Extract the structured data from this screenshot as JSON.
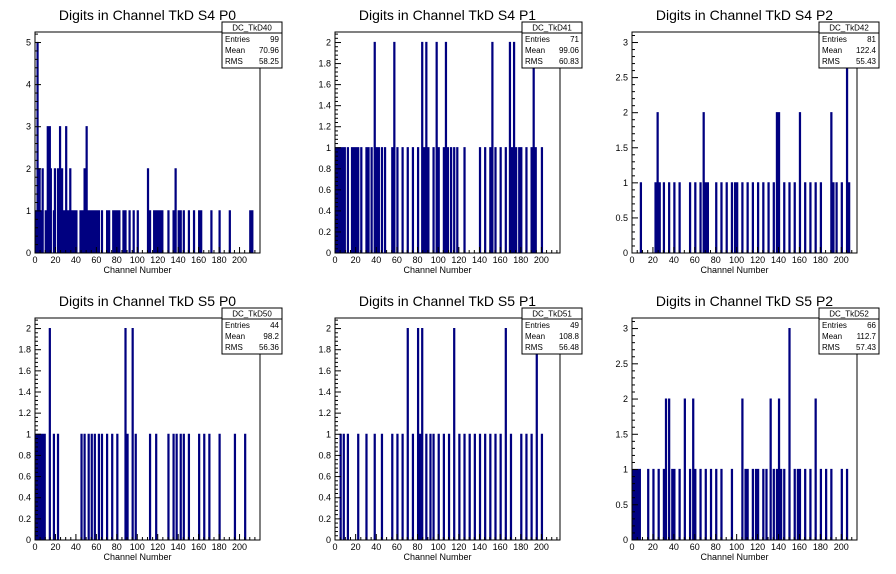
{
  "colors": {
    "histogram": "#000080",
    "axis": "#000000",
    "background": "#ffffff"
  },
  "chart_data": [
    {
      "type": "bar",
      "title": "Digits in Channel TkD S4 P0",
      "xlabel": "Channel Number",
      "xlim": [
        0,
        220
      ],
      "ylim": [
        0,
        5.25
      ],
      "xticks": [
        0,
        20,
        40,
        60,
        80,
        100,
        120,
        140,
        160,
        180,
        200
      ],
      "yticks": [
        0,
        1,
        2,
        3,
        4,
        5
      ],
      "stats": {
        "name": "DC_TkD40",
        "entries_label": "Entries",
        "entries": "99",
        "mean_label": "Mean",
        "mean": "70.96",
        "rms_label": "RMS",
        "rms": "58.25"
      },
      "bins": [
        [
          1,
          1
        ],
        [
          2,
          5
        ],
        [
          3,
          2
        ],
        [
          4,
          2
        ],
        [
          5,
          1
        ],
        [
          7,
          2
        ],
        [
          10,
          1
        ],
        [
          12,
          3
        ],
        [
          13,
          1
        ],
        [
          14,
          3
        ],
        [
          15,
          2
        ],
        [
          18,
          1
        ],
        [
          19,
          2
        ],
        [
          22,
          2
        ],
        [
          24,
          3
        ],
        [
          26,
          2
        ],
        [
          28,
          1
        ],
        [
          30,
          3
        ],
        [
          32,
          1
        ],
        [
          34,
          2
        ],
        [
          36,
          1
        ],
        [
          38,
          1
        ],
        [
          40,
          1
        ],
        [
          44,
          1
        ],
        [
          46,
          1
        ],
        [
          48,
          2
        ],
        [
          50,
          3
        ],
        [
          52,
          1
        ],
        [
          54,
          1
        ],
        [
          56,
          1
        ],
        [
          58,
          1
        ],
        [
          60,
          1
        ],
        [
          62,
          1
        ],
        [
          65,
          1
        ],
        [
          70,
          1
        ],
        [
          72,
          1
        ],
        [
          76,
          1
        ],
        [
          78,
          1
        ],
        [
          80,
          1
        ],
        [
          82,
          1
        ],
        [
          86,
          1
        ],
        [
          88,
          1
        ],
        [
          92,
          1
        ],
        [
          96,
          1
        ],
        [
          100,
          1
        ],
        [
          110,
          2
        ],
        [
          112,
          1
        ],
        [
          116,
          1
        ],
        [
          118,
          1
        ],
        [
          120,
          1
        ],
        [
          122,
          1
        ],
        [
          124,
          1
        ],
        [
          130,
          1
        ],
        [
          135,
          1
        ],
        [
          137,
          2
        ],
        [
          140,
          1
        ],
        [
          142,
          1
        ],
        [
          145,
          1
        ],
        [
          150,
          1
        ],
        [
          155,
          1
        ],
        [
          160,
          1
        ],
        [
          162,
          1
        ],
        [
          172,
          1
        ],
        [
          180,
          1
        ],
        [
          190,
          1
        ],
        [
          210,
          1
        ],
        [
          212,
          1
        ]
      ]
    },
    {
      "type": "bar",
      "title": "Digits in Channel TkD S4 P1",
      "xlabel": "Channel Number",
      "xlim": [
        0,
        218
      ],
      "ylim": [
        0,
        2.1
      ],
      "xticks": [
        0,
        20,
        40,
        60,
        80,
        100,
        120,
        140,
        160,
        180,
        200
      ],
      "yticks": [
        0,
        0.2,
        0.4,
        0.6,
        0.8,
        1,
        1.2,
        1.4,
        1.6,
        1.8,
        2
      ],
      "stats": {
        "name": "DC_TkD41",
        "entries_label": "Entries",
        "entries": "71",
        "mean_label": "Mean",
        "mean": "99.06",
        "rms_label": "RMS",
        "rms": "60.83"
      },
      "bins": [
        [
          1,
          1
        ],
        [
          3,
          1
        ],
        [
          5,
          1
        ],
        [
          7,
          1
        ],
        [
          9,
          1
        ],
        [
          12,
          1
        ],
        [
          16,
          1
        ],
        [
          18,
          1
        ],
        [
          20,
          1
        ],
        [
          22,
          1
        ],
        [
          25,
          1
        ],
        [
          30,
          1
        ],
        [
          32,
          1
        ],
        [
          35,
          1
        ],
        [
          38,
          2
        ],
        [
          40,
          1
        ],
        [
          42,
          1
        ],
        [
          45,
          1
        ],
        [
          48,
          1
        ],
        [
          55,
          1
        ],
        [
          57,
          2
        ],
        [
          60,
          1
        ],
        [
          65,
          1
        ],
        [
          70,
          1
        ],
        [
          75,
          1
        ],
        [
          80,
          1
        ],
        [
          84,
          2
        ],
        [
          86,
          1
        ],
        [
          88,
          2
        ],
        [
          90,
          1
        ],
        [
          95,
          1
        ],
        [
          98,
          2
        ],
        [
          100,
          1
        ],
        [
          105,
          1
        ],
        [
          107,
          2
        ],
        [
          109,
          1
        ],
        [
          112,
          1
        ],
        [
          115,
          1
        ],
        [
          118,
          1
        ],
        [
          125,
          1
        ],
        [
          140,
          1
        ],
        [
          145,
          1
        ],
        [
          150,
          1
        ],
        [
          152,
          2
        ],
        [
          155,
          1
        ],
        [
          160,
          1
        ],
        [
          165,
          1
        ],
        [
          169,
          2
        ],
        [
          171,
          1
        ],
        [
          173,
          2
        ],
        [
          175,
          1
        ],
        [
          178,
          1
        ],
        [
          180,
          1
        ],
        [
          185,
          1
        ],
        [
          190,
          1
        ],
        [
          192,
          2
        ],
        [
          194,
          1
        ],
        [
          200,
          1
        ]
      ]
    },
    {
      "type": "bar",
      "title": "Digits in Channel TkD S4 P2",
      "xlabel": "Channel Number",
      "xlim": [
        0,
        215
      ],
      "ylim": [
        0,
        3.15
      ],
      "xticks": [
        0,
        20,
        40,
        60,
        80,
        100,
        120,
        140,
        160,
        180,
        200
      ],
      "yticks": [
        0,
        0.5,
        1,
        1.5,
        2,
        2.5,
        3
      ],
      "stats": {
        "name": "DC_TkD42",
        "entries_label": "Entries",
        "entries": "81",
        "mean_label": "Mean",
        "mean": "122.4",
        "rms_label": "RMS",
        "rms": "55.43"
      },
      "bins": [
        [
          8,
          1
        ],
        [
          22,
          1
        ],
        [
          24,
          2
        ],
        [
          26,
          1
        ],
        [
          30,
          1
        ],
        [
          35,
          1
        ],
        [
          40,
          1
        ],
        [
          45,
          1
        ],
        [
          55,
          1
        ],
        [
          60,
          1
        ],
        [
          65,
          1
        ],
        [
          68,
          2
        ],
        [
          70,
          1
        ],
        [
          72,
          1
        ],
        [
          80,
          1
        ],
        [
          85,
          1
        ],
        [
          90,
          1
        ],
        [
          95,
          1
        ],
        [
          98,
          1
        ],
        [
          100,
          1
        ],
        [
          105,
          1
        ],
        [
          110,
          1
        ],
        [
          115,
          1
        ],
        [
          120,
          1
        ],
        [
          125,
          1
        ],
        [
          130,
          1
        ],
        [
          135,
          1
        ],
        [
          138,
          2
        ],
        [
          140,
          2
        ],
        [
          145,
          1
        ],
        [
          150,
          1
        ],
        [
          155,
          1
        ],
        [
          160,
          2
        ],
        [
          165,
          1
        ],
        [
          170,
          1
        ],
        [
          175,
          1
        ],
        [
          180,
          1
        ],
        [
          190,
          2
        ],
        [
          192,
          1
        ],
        [
          195,
          1
        ],
        [
          200,
          1
        ],
        [
          205,
          3
        ],
        [
          207,
          1
        ]
      ]
    },
    {
      "type": "bar",
      "title": "Digits in Channel TkD S5 P0",
      "xlabel": "Channel Number",
      "xlim": [
        0,
        220
      ],
      "ylim": [
        0,
        2.1
      ],
      "xticks": [
        0,
        20,
        40,
        60,
        80,
        100,
        120,
        140,
        160,
        180,
        200
      ],
      "yticks": [
        0,
        0.2,
        0.4,
        0.6,
        0.8,
        1,
        1.2,
        1.4,
        1.6,
        1.8,
        2
      ],
      "stats": {
        "name": "DC_TkD50",
        "entries_label": "Entries",
        "entries": "44",
        "mean_label": "Mean",
        "mean": "98.2",
        "rms_label": "RMS",
        "rms": "56.36"
      },
      "bins": [
        [
          1,
          1
        ],
        [
          3,
          1
        ],
        [
          5,
          1
        ],
        [
          7,
          1
        ],
        [
          9,
          1
        ],
        [
          14,
          2
        ],
        [
          18,
          1
        ],
        [
          22,
          1
        ],
        [
          45,
          1
        ],
        [
          48,
          1
        ],
        [
          52,
          1
        ],
        [
          55,
          1
        ],
        [
          58,
          1
        ],
        [
          62,
          1
        ],
        [
          65,
          1
        ],
        [
          70,
          1
        ],
        [
          75,
          1
        ],
        [
          80,
          1
        ],
        [
          88,
          2
        ],
        [
          90,
          1
        ],
        [
          95,
          2
        ],
        [
          98,
          1
        ],
        [
          112,
          1
        ],
        [
          118,
          1
        ],
        [
          130,
          1
        ],
        [
          135,
          1
        ],
        [
          138,
          1
        ],
        [
          142,
          1
        ],
        [
          145,
          1
        ],
        [
          150,
          1
        ],
        [
          160,
          1
        ],
        [
          165,
          1
        ],
        [
          170,
          1
        ],
        [
          180,
          1
        ],
        [
          195,
          1
        ],
        [
          205,
          1
        ]
      ]
    },
    {
      "type": "bar",
      "title": "Digits in Channel TkD S5 P1",
      "xlabel": "Channel Number",
      "xlim": [
        0,
        218
      ],
      "ylim": [
        0,
        2.1
      ],
      "xticks": [
        0,
        20,
        40,
        60,
        80,
        100,
        120,
        140,
        160,
        180,
        200
      ],
      "yticks": [
        0,
        0.2,
        0.4,
        0.6,
        0.8,
        1,
        1.2,
        1.4,
        1.6,
        1.8,
        2
      ],
      "stats": {
        "name": "DC_TkD51",
        "entries_label": "Entries",
        "entries": "49",
        "mean_label": "Mean",
        "mean": "108.8",
        "rms_label": "RMS",
        "rms": "56.48"
      },
      "bins": [
        [
          5,
          1
        ],
        [
          8,
          1
        ],
        [
          12,
          1
        ],
        [
          22,
          1
        ],
        [
          30,
          1
        ],
        [
          38,
          1
        ],
        [
          45,
          1
        ],
        [
          55,
          1
        ],
        [
          60,
          1
        ],
        [
          65,
          1
        ],
        [
          70,
          2
        ],
        [
          75,
          1
        ],
        [
          80,
          2
        ],
        [
          82,
          1
        ],
        [
          84,
          2
        ],
        [
          88,
          1
        ],
        [
          92,
          1
        ],
        [
          95,
          1
        ],
        [
          100,
          1
        ],
        [
          105,
          1
        ],
        [
          110,
          1
        ],
        [
          115,
          2
        ],
        [
          120,
          1
        ],
        [
          125,
          1
        ],
        [
          130,
          1
        ],
        [
          135,
          1
        ],
        [
          140,
          1
        ],
        [
          145,
          1
        ],
        [
          150,
          1
        ],
        [
          155,
          1
        ],
        [
          160,
          1
        ],
        [
          165,
          2
        ],
        [
          170,
          1
        ],
        [
          180,
          1
        ],
        [
          185,
          1
        ],
        [
          190,
          1
        ],
        [
          195,
          2
        ],
        [
          200,
          1
        ]
      ]
    },
    {
      "type": "bar",
      "title": "Digits in Channel TkD S5 P2",
      "xlabel": "Channel Number",
      "xlim": [
        0,
        215
      ],
      "ylim": [
        0,
        3.15
      ],
      "xticks": [
        0,
        20,
        40,
        60,
        80,
        100,
        120,
        140,
        160,
        180,
        200
      ],
      "yticks": [
        0,
        0.5,
        1,
        1.5,
        2,
        2.5,
        3
      ],
      "stats": {
        "name": "DC_TkD52",
        "entries_label": "Entries",
        "entries": "66",
        "mean_label": "Mean",
        "mean": "112.7",
        "rms_label": "RMS",
        "rms": "57.43"
      },
      "bins": [
        [
          1,
          1
        ],
        [
          3,
          1
        ],
        [
          5,
          1
        ],
        [
          7,
          1
        ],
        [
          15,
          1
        ],
        [
          20,
          1
        ],
        [
          25,
          1
        ],
        [
          30,
          1
        ],
        [
          32,
          2
        ],
        [
          35,
          2
        ],
        [
          38,
          1
        ],
        [
          40,
          1
        ],
        [
          45,
          1
        ],
        [
          50,
          2
        ],
        [
          55,
          1
        ],
        [
          58,
          2
        ],
        [
          60,
          1
        ],
        [
          65,
          1
        ],
        [
          70,
          1
        ],
        [
          75,
          1
        ],
        [
          80,
          1
        ],
        [
          85,
          1
        ],
        [
          95,
          1
        ],
        [
          105,
          2
        ],
        [
          108,
          1
        ],
        [
          110,
          1
        ],
        [
          115,
          1
        ],
        [
          118,
          1
        ],
        [
          120,
          1
        ],
        [
          125,
          1
        ],
        [
          128,
          1
        ],
        [
          132,
          2
        ],
        [
          135,
          1
        ],
        [
          138,
          1
        ],
        [
          140,
          2
        ],
        [
          142,
          1
        ],
        [
          145,
          1
        ],
        [
          150,
          3
        ],
        [
          155,
          1
        ],
        [
          158,
          1
        ],
        [
          160,
          1
        ],
        [
          165,
          1
        ],
        [
          170,
          1
        ],
        [
          175,
          2
        ],
        [
          180,
          1
        ],
        [
          185,
          1
        ],
        [
          190,
          1
        ],
        [
          200,
          1
        ],
        [
          205,
          1
        ]
      ]
    }
  ]
}
